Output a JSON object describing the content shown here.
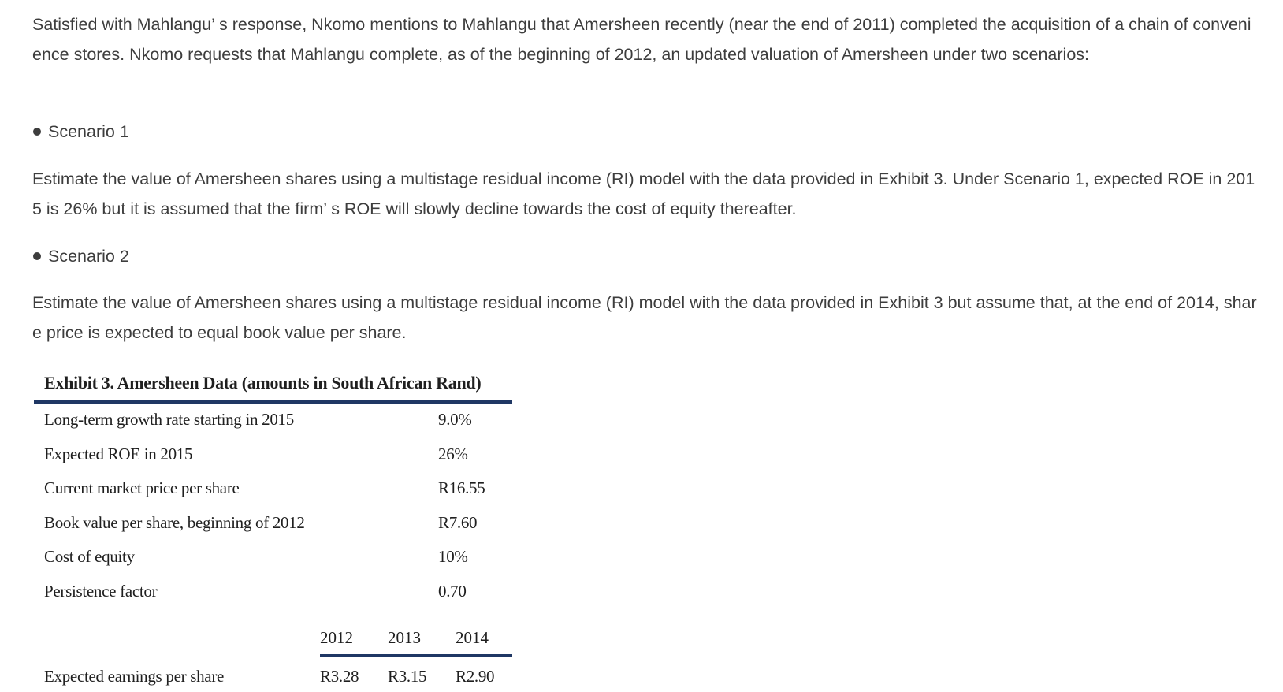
{
  "intro": "Satisfied with Mahlangu’ s response, Nkomo mentions to Mahlangu that Amersheen recently (near the end of 2011) completed the acquisition of a chain of convenience stores. Nkomo requests that Mahlangu complete, as of the beginning of 2012, an updated valuation of Amersheen under two scenarios:",
  "scenario1": {
    "heading": "Scenario 1",
    "text": "Estimate the value of Amersheen shares using a multistage residual income (RI) model with the data provided in Exhibit 3. Under Scenario 1, expected ROE in 2015 is 26% but it is assumed that the firm’ s ROE will slowly decline towards the cost of equity thereafter."
  },
  "scenario2": {
    "heading": "Scenario 2",
    "text": "Estimate the value of Amersheen shares using a multistage residual income (RI) model with the data provided in Exhibit 3 but assume that, at the end of 2014, share price is expected to equal book value per share."
  },
  "exhibit": {
    "title": "Exhibit 3. Amersheen Data (amounts in South African Rand)",
    "rows": [
      {
        "label": "Long-term growth rate starting in 2015",
        "value": "9.0%"
      },
      {
        "label": "Expected ROE in 2015",
        "value": "26%"
      },
      {
        "label": "Current market price per share",
        "value": "R16.55"
      },
      {
        "label": "Book value per share, beginning of 2012",
        "value": "R7.60"
      },
      {
        "label": "Cost of equity",
        "value": "10%"
      },
      {
        "label": "Persistence factor",
        "value": "0.70"
      }
    ],
    "years": [
      "2012",
      "2013",
      "2014"
    ],
    "eps": {
      "label": "Expected earnings per share",
      "values": [
        "R3.28",
        "R3.15",
        "R2.90"
      ]
    }
  }
}
